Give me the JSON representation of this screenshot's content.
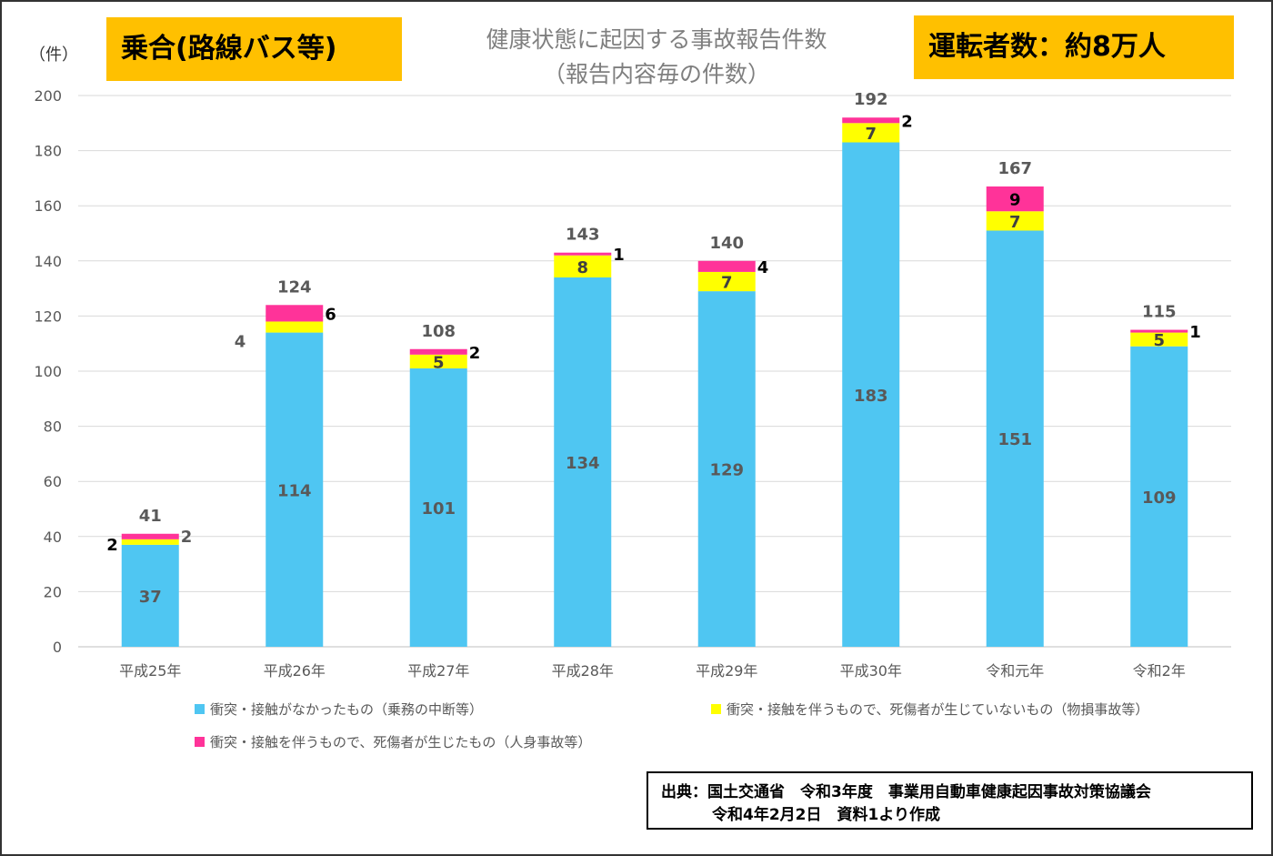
{
  "badges": {
    "left": "乗合(路線バス等)",
    "right": "運転者数：約8万人"
  },
  "title": {
    "line1": "健康状態に起因する事故報告件数",
    "line2": "（報告内容毎の件数）"
  },
  "unit_label": "（件）",
  "source": {
    "line1": "出典：国土交通省　令和3年度　事業用自動車健康起因事故対策協議会",
    "line2": "令和4年2月2日　資料1より作成"
  },
  "chart_data": {
    "type": "bar",
    "stacked": true,
    "categories": [
      "平成25年",
      "平成26年",
      "平成27年",
      "平成28年",
      "平成29年",
      "平成30年",
      "令和元年",
      "令和2年"
    ],
    "series": [
      {
        "name": "衝突・接触がなかったもの（乗務の中断等）",
        "color": "#4FC6F2",
        "values": [
          37,
          114,
          101,
          134,
          129,
          183,
          151,
          109
        ]
      },
      {
        "name": "衝突・接触を伴うもので、死傷者が生じていないもの（物損事故等）",
        "color": "#FFFF00",
        "values": [
          2,
          4,
          5,
          8,
          7,
          7,
          7,
          5
        ]
      },
      {
        "name": "衝突・接触を伴うもので、死傷者が生じたもの（人身事故等）",
        "color": "#FF3399",
        "values": [
          2,
          6,
          2,
          1,
          4,
          2,
          9,
          1
        ]
      }
    ],
    "totals": [
      41,
      124,
      108,
      143,
      140,
      192,
      167,
      115
    ],
    "ylim": [
      0,
      200
    ],
    "yticks": [
      0,
      20,
      40,
      60,
      80,
      100,
      120,
      140,
      160,
      180,
      200
    ],
    "grid": true,
    "legend_position": "bottom"
  }
}
